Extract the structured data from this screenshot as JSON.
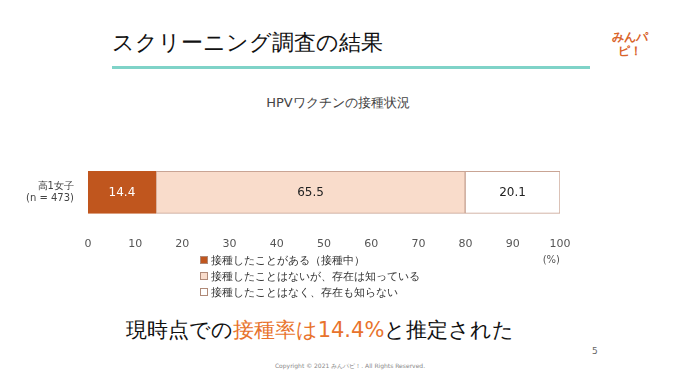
{
  "slide": {
    "title": "スクリーニング調査の結果",
    "logo": "みんパピ！",
    "conclusion": [
      {
        "text": "現時点での",
        "highlight": false
      },
      {
        "text": "接種率は14.4%",
        "highlight": true
      },
      {
        "text": "と推定された",
        "highlight": false
      }
    ],
    "page": "5",
    "copyright": "Copyright © 2021 みんパピ！. All Rights Reserved."
  },
  "chart_data": {
    "type": "bar",
    "title": "HPVワクチンの接種状況",
    "orientation": "horizontal",
    "stacked": true,
    "data_labels": true,
    "grid": false,
    "legend": "bottom",
    "x_label": "(%)",
    "categories": [
      "高1女子\n(n = 473)"
    ],
    "series": [
      {
        "name": "接種したことがある（接種中）",
        "color": "#c0561e",
        "values": [
          14.4
        ]
      },
      {
        "name": "接種したことはないが、存在は知っている",
        "color": "#f9dccb",
        "values": [
          65.5
        ]
      },
      {
        "name": "接種したことはなく、存在も知らない",
        "color": "#ffffff",
        "values": [
          20.1
        ]
      }
    ],
    "xlim": [
      0,
      100
    ],
    "xticks": [
      0,
      10,
      20,
      30,
      40,
      50,
      60,
      70,
      80,
      90,
      100
    ]
  }
}
